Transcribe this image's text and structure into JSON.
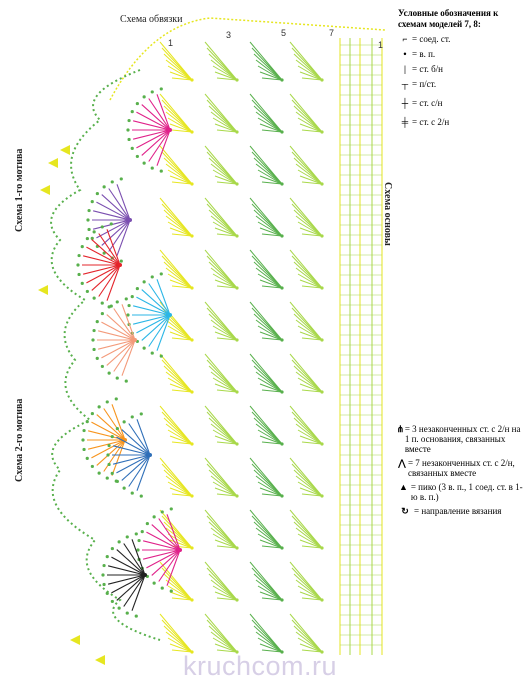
{
  "labels": {
    "bind_scheme": "Схема обвязки",
    "base_scheme": "Схема основы",
    "motif1": "Схема 1-го мотива",
    "motif2": "Схема 2-го мотива"
  },
  "legend": {
    "title": "Условные обозначения к схемам моделей 7, 8:",
    "items": [
      {
        "icon": "slip-stitch",
        "text": "= соед. ст."
      },
      {
        "icon": "chain",
        "text": "= в. п."
      },
      {
        "icon": "single-crochet",
        "text": "= ст. б/н"
      },
      {
        "icon": "half-double",
        "text": "= п/ст."
      },
      {
        "icon": "double-crochet",
        "text": "= ст. с/н"
      },
      {
        "icon": "treble-crochet",
        "text": "= ст. с 2/н"
      }
    ]
  },
  "legend2": {
    "items": [
      {
        "icon": "cluster-3",
        "text": "= 3 незаконченных ст. с 2/н на 1 п. основания, связанных вместе"
      },
      {
        "icon": "cluster-7",
        "text": "= 7 незаконченных ст. с 2/н, связанных вместе"
      },
      {
        "icon": "picot",
        "text": "= пико (3 в. п., 1 соед. ст. в 1-ю в. п.)"
      },
      {
        "icon": "direction",
        "text": "= направление вязания"
      }
    ]
  },
  "row_numbers": [
    "1",
    "3",
    "5",
    "7",
    "1"
  ],
  "watermark": "kruchcom.ru",
  "colors": {
    "yellow": "#e6e620",
    "lime": "#a8d84a",
    "green": "#58b04c",
    "magenta": "#e0218a",
    "red": "#e3242b",
    "purple": "#7b4fb0",
    "cyan": "#2bb6e6",
    "salmon": "#f39a7a",
    "orange": "#f7941d",
    "blue": "#2f6fb8",
    "black": "#222222",
    "text": "#222222"
  }
}
